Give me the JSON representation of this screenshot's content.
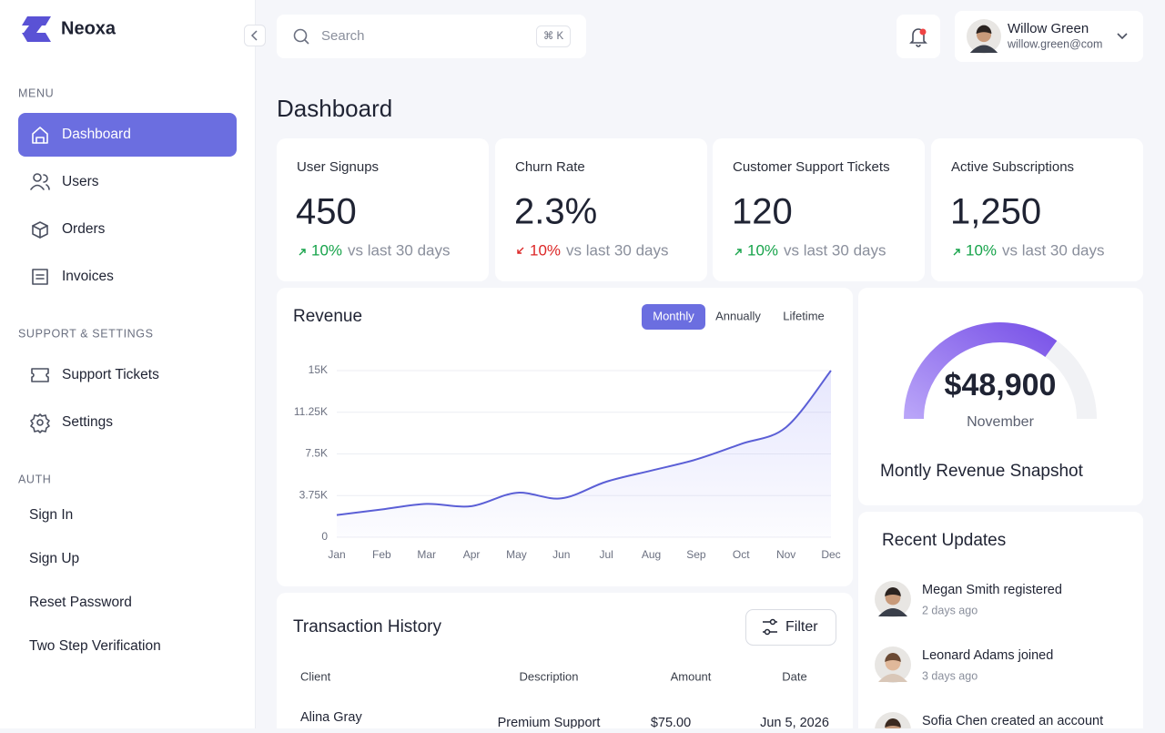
{
  "brand": "Neoxa",
  "search": {
    "placeholder": "Search",
    "shortcut": "⌘ K"
  },
  "user": {
    "name": "Willow Green",
    "email": "willow.green@com"
  },
  "sidebar": {
    "active": {
      "section": 0,
      "item": 0
    },
    "sections": [
      {
        "title": "MENU",
        "icons": true,
        "items": [
          "Dashboard",
          "Users",
          "Orders",
          "Invoices"
        ]
      },
      {
        "title": "SUPPORT & SETTINGS",
        "icons": true,
        "items": [
          "Support Tickets",
          "Settings"
        ]
      },
      {
        "title": "AUTH",
        "icons": false,
        "items": [
          "Sign In",
          "Sign Up",
          "Reset Password",
          "Two Step Verification"
        ]
      }
    ]
  },
  "page_title": "Dashboard",
  "stats": [
    {
      "label": "User Signups",
      "value": "450",
      "change": "10%",
      "trend": "up",
      "note": "vs last 30 days"
    },
    {
      "label": "Churn Rate",
      "value": "2.3%",
      "change": "10%",
      "trend": "down",
      "note": "vs last 30 days"
    },
    {
      "label": "Customer Support Tickets",
      "value": "120",
      "change": "10%",
      "trend": "up",
      "note": "vs last 30 days"
    },
    {
      "label": "Active Subscriptions",
      "value": "1,250",
      "change": "10%",
      "trend": "up",
      "note": "vs last 30 days"
    }
  ],
  "revenue": {
    "title": "Revenue",
    "tabs": [
      "Monthly",
      "Annually",
      "Lifetime"
    ],
    "active_tab": 0,
    "chart": {
      "type": "line",
      "color": "#5b5fd6",
      "categories": [
        "Jan",
        "Feb",
        "Mar",
        "Apr",
        "May",
        "Jun",
        "Jul",
        "Aug",
        "Sep",
        "Oct",
        "Nov",
        "Dec"
      ],
      "values": [
        2000,
        2500,
        3000,
        2800,
        4000,
        3500,
        5000,
        6000,
        7000,
        8400,
        9900,
        15000
      ],
      "ylim": [
        0,
        15000
      ],
      "yticks": [
        0,
        {
          "value": 3750,
          "label": "3.75K"
        },
        {
          "value": 7500,
          "label": "7.5K"
        },
        {
          "value": 11250,
          "label": "11.25K"
        },
        {
          "value": 15000,
          "label": "15K"
        }
      ],
      "grid": true
    }
  },
  "snapshot": {
    "amount": "$48,900",
    "month": "November",
    "title": "Montly Revenue Snapshot",
    "progress": 70
  },
  "transactions": {
    "title": "Transaction History",
    "filter": "Filter",
    "columns": [
      "Client",
      "Description",
      "Amount",
      "Date"
    ],
    "rows": [
      [
        "Alina Gray",
        "Premium Support",
        "$75.00",
        "Jun 5, 2026"
      ]
    ]
  },
  "updates": {
    "title": "Recent Updates",
    "items": [
      {
        "text": "Megan Smith registered",
        "time": "2 days ago"
      },
      {
        "text": "Leonard Adams joined",
        "time": "3 days ago"
      },
      {
        "text": "Sofia Chen created an account"
      }
    ]
  }
}
